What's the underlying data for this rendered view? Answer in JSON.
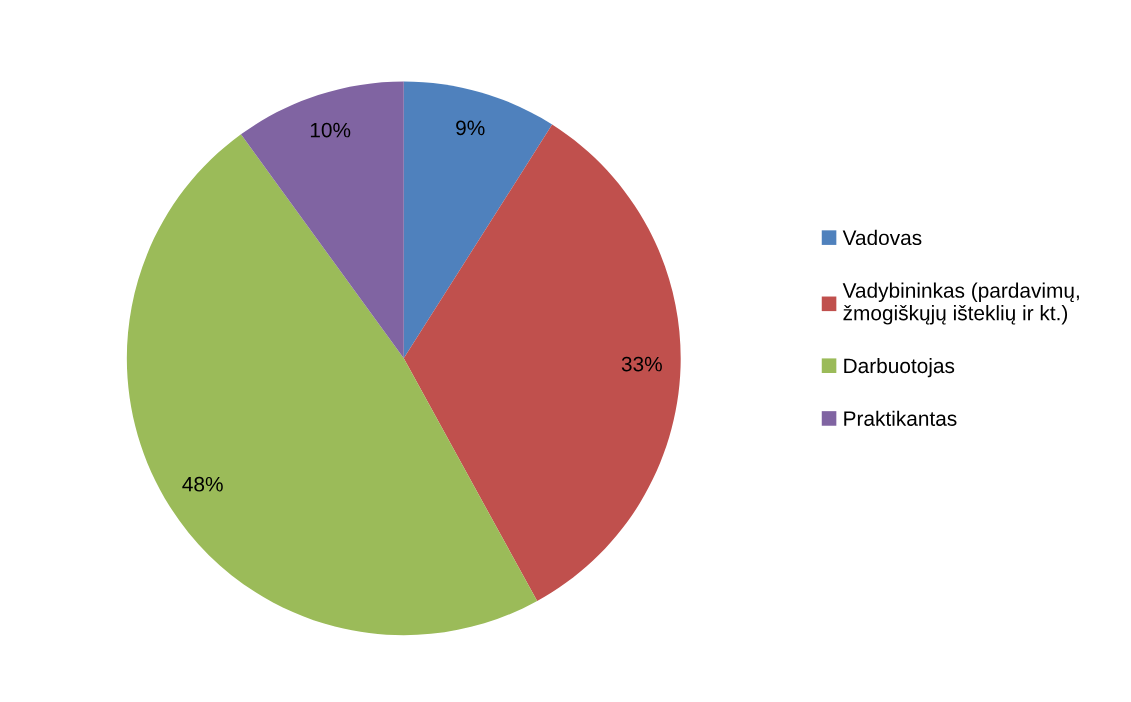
{
  "chart_data": {
    "type": "pie",
    "categories": [
      "Vadovas",
      "Vadybininkas (pardavimų,\nžmogiškųjų išteklių ir kt.)",
      "Darbuotojas",
      "Praktikantas"
    ],
    "values": [
      9,
      33,
      48,
      10
    ],
    "colors": [
      "#4f81bd",
      "#c0504d",
      "#9bbb59",
      "#8064a2"
    ],
    "value_labels": [
      "9%",
      "33%",
      "48%",
      "10%"
    ],
    "legend": "right"
  }
}
